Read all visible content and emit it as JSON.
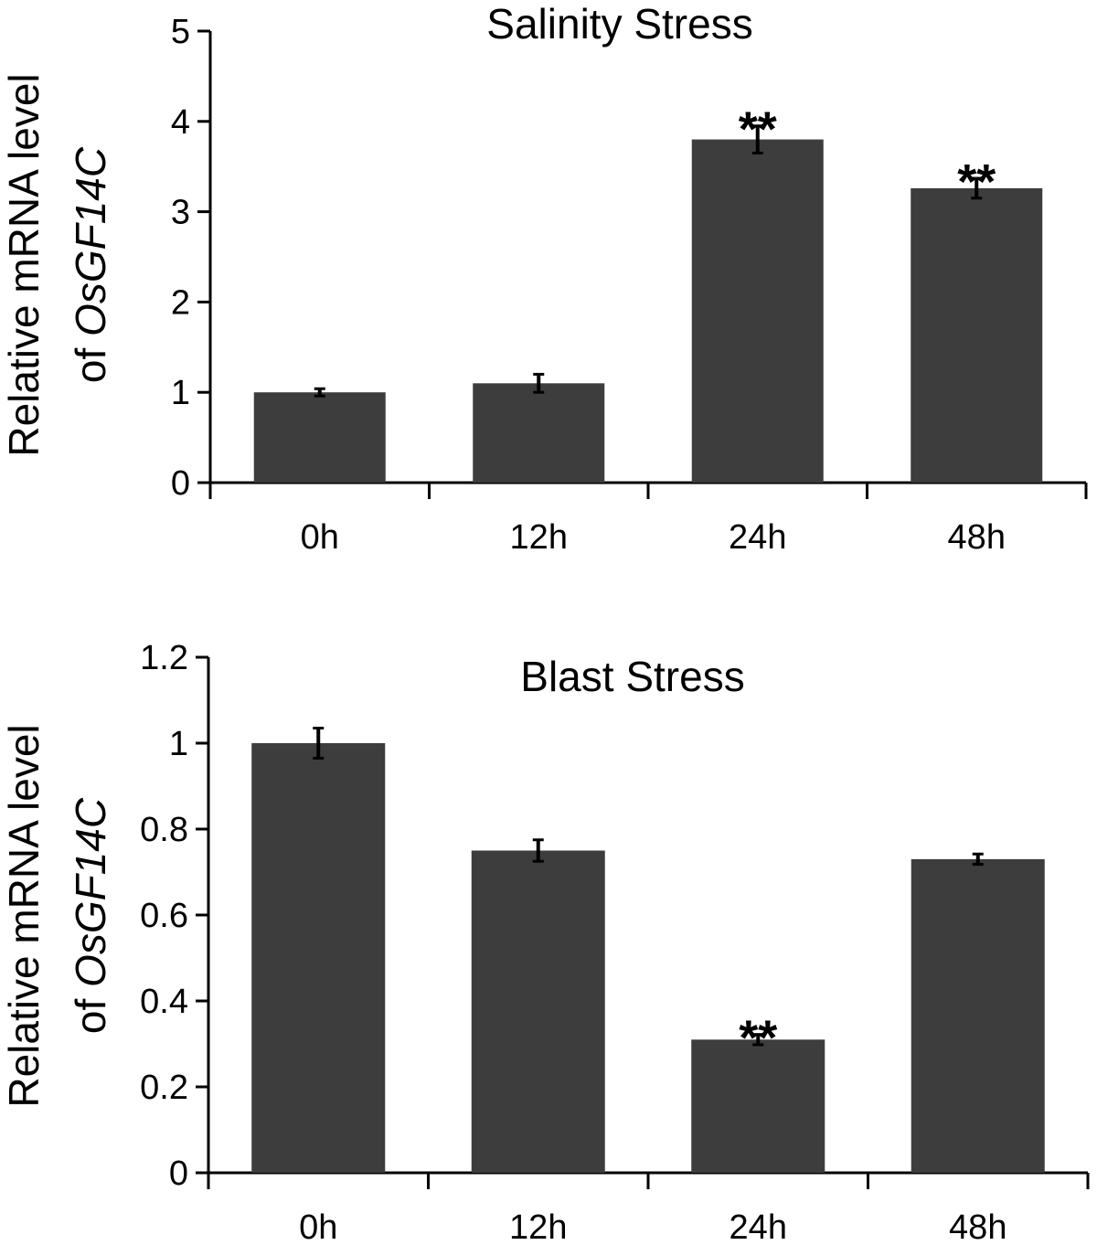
{
  "chart_data": [
    {
      "type": "bar",
      "title": "Salinity Stress",
      "ylabel_line1": "Relative mRNA level",
      "ylabel_line2_prefix": "of ",
      "ylabel_line2_gene": "OsGF14C",
      "xlabel": "",
      "categories": [
        "0h",
        "12h",
        "24h",
        "48h"
      ],
      "values": [
        1.0,
        1.1,
        3.8,
        3.26
      ],
      "errors": [
        0.04,
        0.1,
        0.15,
        0.11
      ],
      "significance": [
        "",
        "",
        "**",
        "**"
      ],
      "ylim": [
        0,
        5
      ],
      "yticks": [
        0,
        1,
        2,
        3,
        4,
        5
      ],
      "ytick_labels": [
        "0",
        "1",
        "2",
        "3",
        "4",
        "5"
      ],
      "bar_color": "#3d3d3d"
    },
    {
      "type": "bar",
      "title": "Blast Stress",
      "ylabel_line1": "Relative mRNA level",
      "ylabel_line2_prefix": "of ",
      "ylabel_line2_gene": "OsGF14C",
      "xlabel": "",
      "categories": [
        "0h",
        "12h",
        "24h",
        "48h"
      ],
      "values": [
        1.0,
        0.75,
        0.31,
        0.73
      ],
      "errors": [
        0.035,
        0.025,
        0.012,
        0.012
      ],
      "significance": [
        "",
        "",
        "**",
        ""
      ],
      "ylim": [
        0,
        1.2
      ],
      "yticks": [
        0,
        0.2,
        0.4,
        0.6,
        0.8,
        1.0,
        1.2
      ],
      "ytick_labels": [
        "0",
        "0.2",
        "0.4",
        "0.6",
        "0.8",
        "1",
        "1.2"
      ],
      "bar_color": "#3d3d3d"
    }
  ]
}
